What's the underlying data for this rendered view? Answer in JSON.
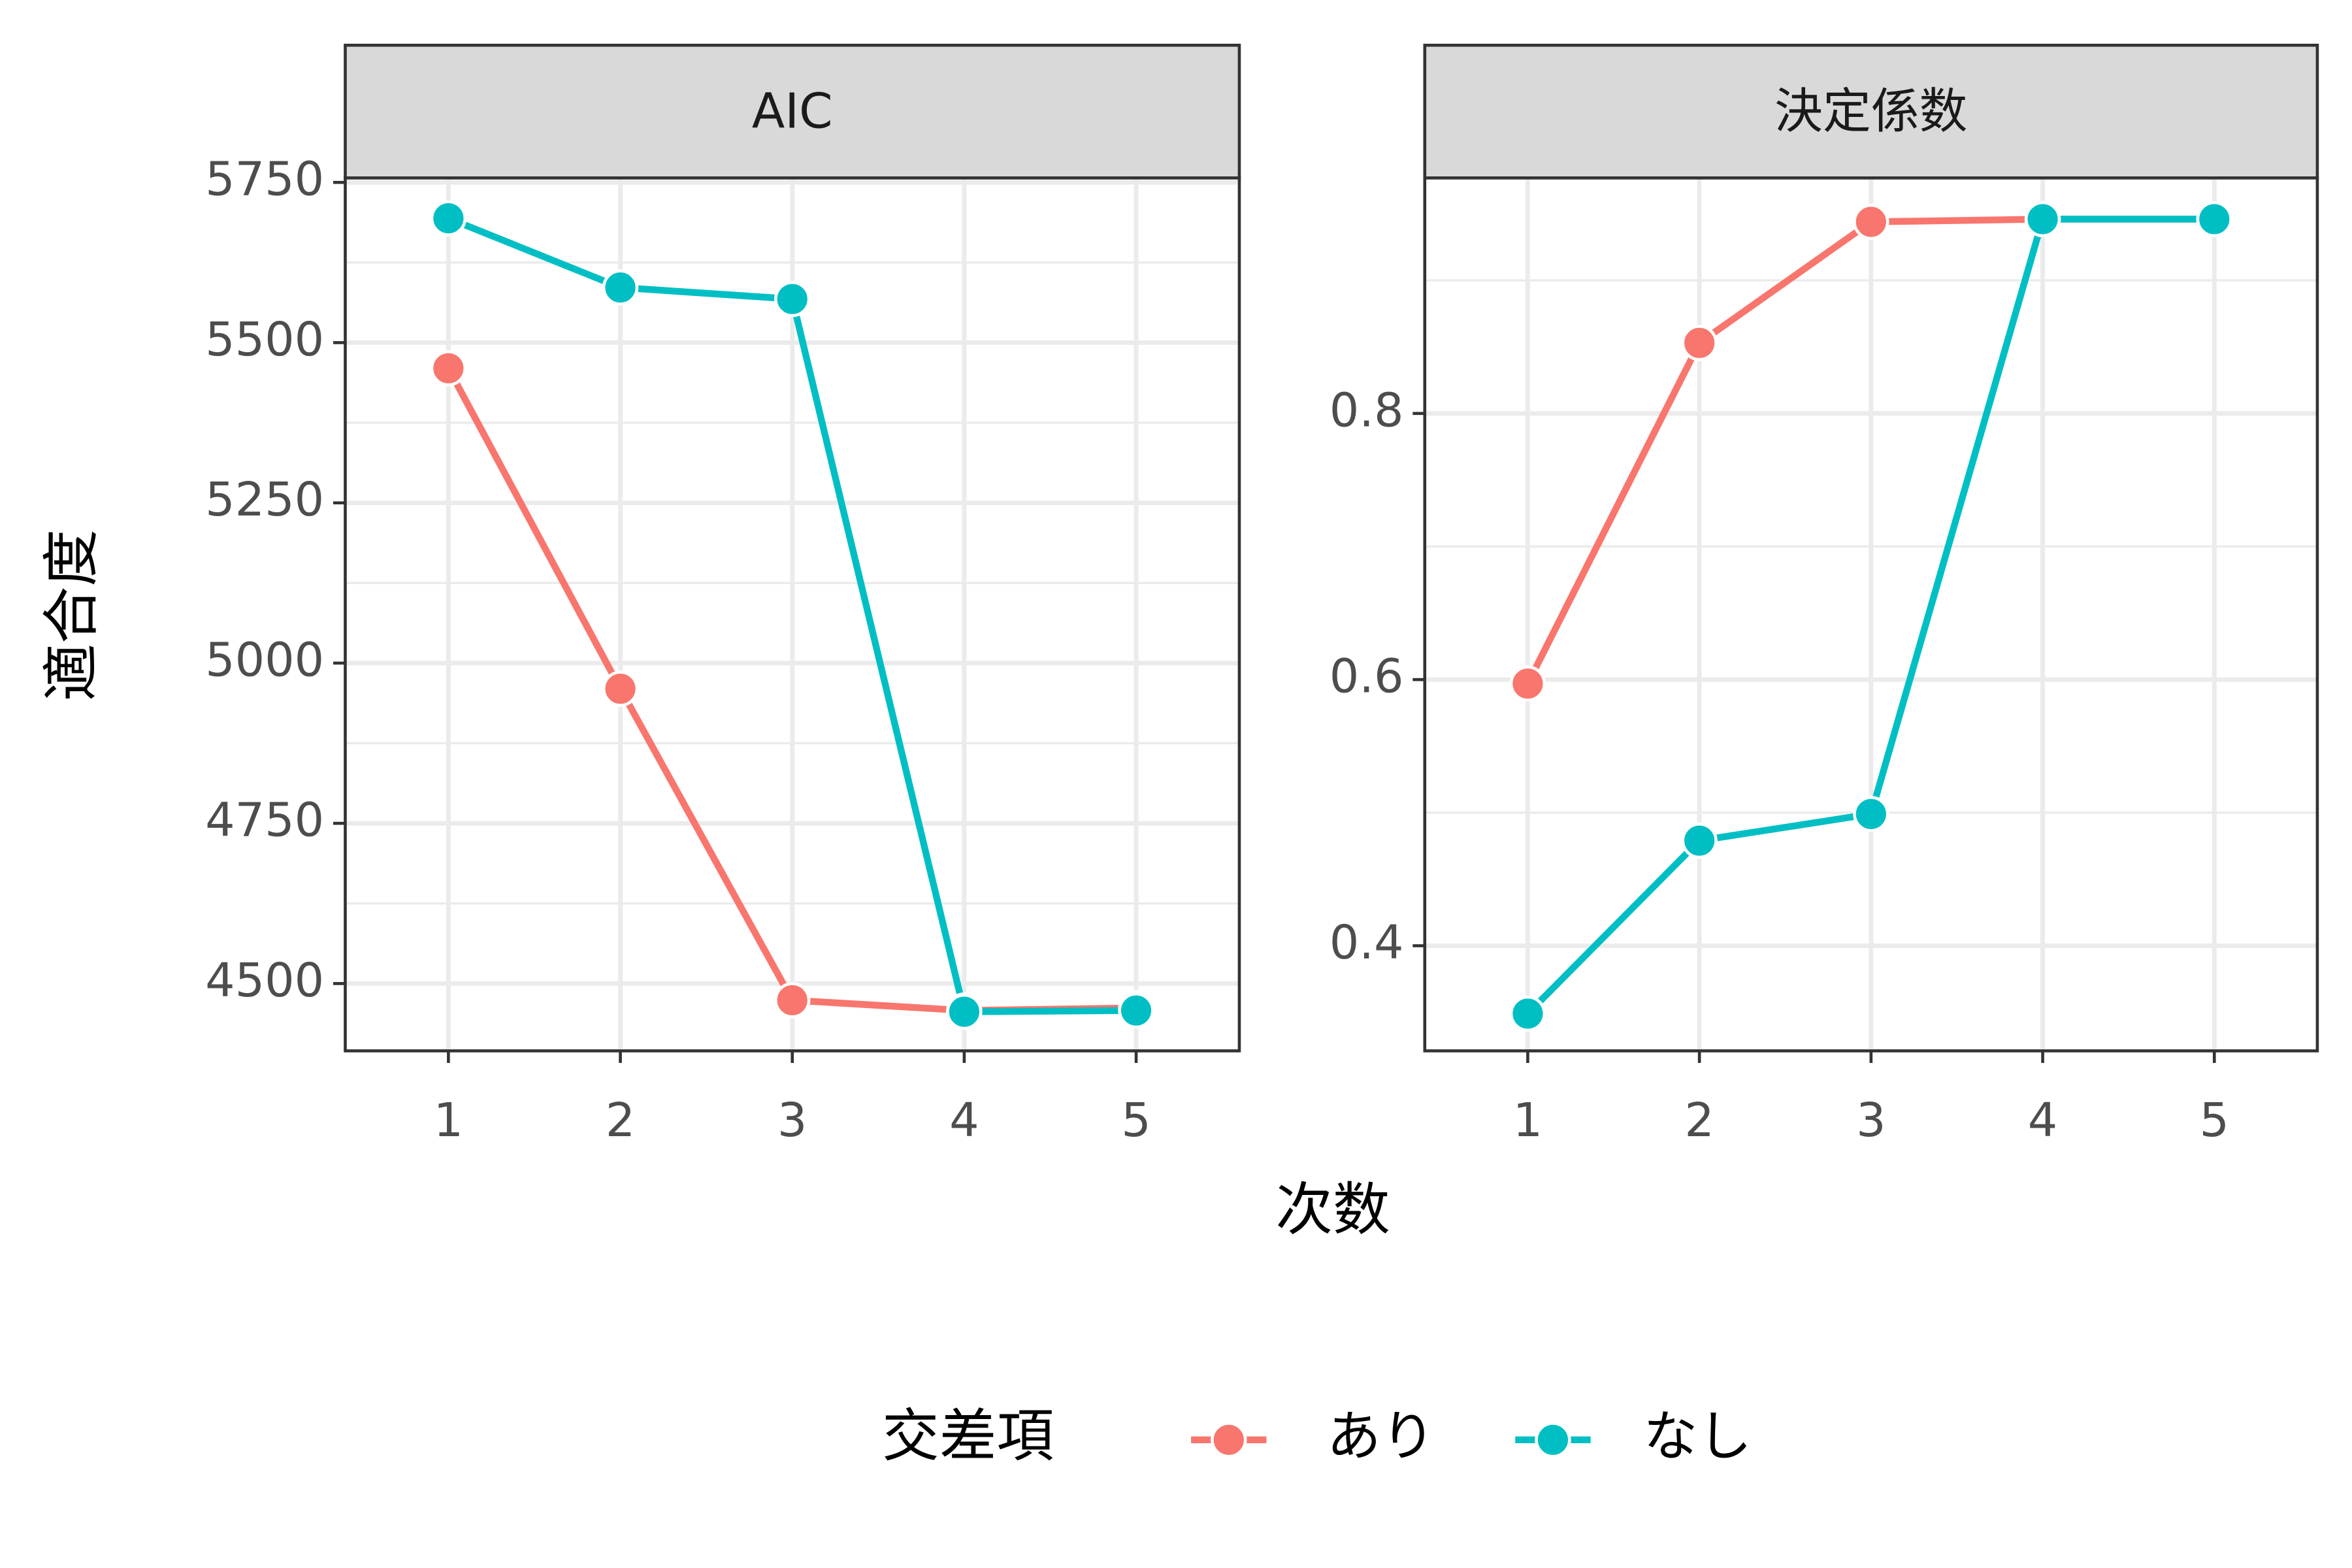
{
  "x_label": "次数",
  "y_label": "適合度",
  "legend": {
    "title": "交差項"
  },
  "chart_data": [
    {
      "type": "line",
      "title": "AIC",
      "x": [
        1,
        2,
        3,
        4,
        5
      ],
      "series": [
        {
          "name": "あり",
          "color": "#F8766D",
          "values": [
            5460,
            4960,
            4474,
            4458,
            4462
          ]
        },
        {
          "name": "なし",
          "color": "#00BFC4",
          "values": [
            5694,
            5586,
            5568,
            4456,
            4458
          ]
        }
      ],
      "xlim": [
        0.4,
        5.6
      ],
      "xticks": [
        1,
        2,
        3,
        4,
        5
      ],
      "ylim": [
        4395,
        5757
      ],
      "yticks": [
        4500,
        4750,
        5000,
        5250,
        5500,
        5750
      ],
      "minor_yticks": [
        4625,
        4875,
        5125,
        5375,
        5625
      ],
      "grid": true
    },
    {
      "type": "line",
      "title": "決定係数",
      "x": [
        1,
        2,
        3,
        4,
        5
      ],
      "series": [
        {
          "name": "あり",
          "color": "#F8766D",
          "values": [
            0.597,
            0.853,
            0.944,
            0.946,
            0.946
          ]
        },
        {
          "name": "なし",
          "color": "#00BFC4",
          "values": [
            0.349,
            0.479,
            0.499,
            0.946,
            0.946
          ]
        }
      ],
      "xlim": [
        0.4,
        5.6
      ],
      "xticks": [
        1,
        2,
        3,
        4,
        5
      ],
      "ylim": [
        0.321,
        0.977
      ],
      "yticks": [
        0.4,
        0.6,
        0.8
      ],
      "minor_yticks": [
        0.5,
        0.7,
        0.9
      ],
      "grid": true
    }
  ]
}
